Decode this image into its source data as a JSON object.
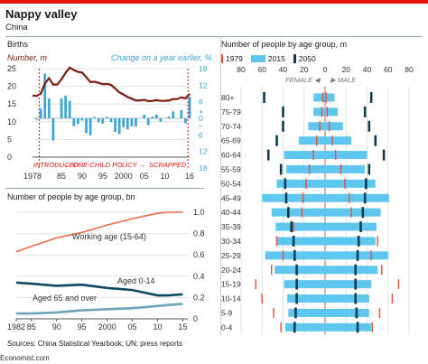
{
  "header": {
    "title": "Nappy valley",
    "subtitle": "China"
  },
  "footer": {
    "source": "Sources: China Statistical Yearbook; UN; press reports",
    "brand": "Economist.com"
  },
  "colors": {
    "births_line": "#7b1a0e",
    "births_change": "#3aa7d8",
    "working_age": "#ec6e4a",
    "aged_0_14": "#0c4a63",
    "aged_65": "#6aa6b8",
    "pyr_1979": "#e3573a",
    "pyr_2015": "#5ec7ef",
    "pyr_2050": "#0c3b52",
    "accent_red": "#e3120b"
  },
  "chart_data": [
    {
      "type": "line",
      "id": "births",
      "title": "Births",
      "left_axis_label": "Number, m",
      "right_axis_label": "Change on a year earlier, %",
      "left_ticks": [
        "25",
        "20",
        "15",
        "10",
        "5",
        "0"
      ],
      "right_ticks": [
        "18",
        "12",
        "6",
        "+",
        "0",
        "–",
        "6",
        "12",
        "18"
      ],
      "x_tick_labels": [
        "1978",
        "85",
        "90",
        "95",
        "2000",
        "05",
        "10",
        "16"
      ],
      "annotations": {
        "introduced": "INTRODUCED",
        "policy": "ONE-CHILD POLICY",
        "scrapped": "SCRAPPED"
      },
      "ylim_left": [
        0,
        25
      ],
      "ylim_right": [
        -18,
        18
      ],
      "x": [
        1978,
        1979,
        1980,
        1981,
        1982,
        1983,
        1984,
        1985,
        1986,
        1987,
        1988,
        1989,
        1990,
        1991,
        1992,
        1993,
        1994,
        1995,
        1996,
        1997,
        1998,
        1999,
        2000,
        2001,
        2002,
        2003,
        2004,
        2005,
        2006,
        2007,
        2008,
        2009,
        2010,
        2011,
        2012,
        2013,
        2014,
        2015,
        2016
      ],
      "series": [
        {
          "name": "Number, m",
          "values": [
            17.4,
            17.3,
            17.9,
            20.8,
            22.3,
            20.5,
            20.5,
            22.0,
            23.8,
            25.3,
            24.6,
            24.1,
            23.9,
            22.6,
            21.2,
            21.3,
            21.0,
            20.6,
            20.7,
            20.4,
            19.4,
            18.3,
            17.7,
            17.0,
            16.5,
            16.0,
            16.0,
            16.2,
            15.8,
            15.9,
            16.1,
            15.9,
            15.9,
            16.0,
            16.4,
            16.4,
            16.9,
            16.6,
            17.9
          ]
        },
        {
          "name": "Change on a year earlier, %",
          "values": [
            0,
            -0.5,
            3.5,
            16.2,
            7.2,
            -8.1,
            0,
            7.3,
            8.2,
            6.3,
            -2.8,
            -2.0,
            -0.8,
            -5.4,
            -6.2,
            0.5,
            -1.4,
            -1.9,
            0.5,
            -1.4,
            -4.9,
            -5.7,
            -3.3,
            -4.0,
            -2.9,
            -3.0,
            0,
            1.3,
            -2.5,
            0.6,
            1.3,
            -1.2,
            0,
            0.6,
            2.5,
            0,
            3.0,
            -1.8,
            7.8
          ]
        }
      ]
    },
    {
      "type": "line",
      "id": "age_groups",
      "title": "Number of people by age group, bn",
      "x_tick_labels": [
        "1982",
        "85",
        "90",
        "95",
        "2000",
        "05",
        "10",
        "15"
      ],
      "y_ticks": [
        "1.0",
        "0.8",
        "0.6",
        "0.4",
        "0.2",
        "0"
      ],
      "ylim": [
        0,
        1.0
      ],
      "x": [
        1982,
        1985,
        1990,
        1995,
        2000,
        2005,
        2010,
        2012,
        2015
      ],
      "series": [
        {
          "name": "Working age (15-64)",
          "values": [
            0.63,
            0.68,
            0.76,
            0.81,
            0.88,
            0.94,
            0.99,
            1.0,
            1.0
          ]
        },
        {
          "name": "Aged 0-14",
          "values": [
            0.34,
            0.33,
            0.31,
            0.32,
            0.29,
            0.27,
            0.22,
            0.22,
            0.23
          ]
        },
        {
          "name": "Aged 65 and over",
          "values": [
            0.05,
            0.05,
            0.06,
            0.08,
            0.09,
            0.1,
            0.12,
            0.13,
            0.14
          ]
        }
      ]
    },
    {
      "type": "bar",
      "id": "pyramid",
      "title": "Number of people by age group, m",
      "legend": [
        "1979",
        "2015",
        "2050"
      ],
      "female_label": "FEMALE",
      "male_label": "MALE",
      "x_tick_labels": [
        "80",
        "60",
        "40",
        "20",
        "0",
        "20",
        "40",
        "60",
        "80"
      ],
      "xlim": [
        -80,
        80
      ],
      "categories": [
        "80+",
        "75-79",
        "70-74",
        "65-69",
        "60-64",
        "55-59",
        "50-54",
        "45-49",
        "40-44",
        "35-39",
        "30-34",
        "25-29",
        "20-24",
        "15-19",
        "10-14",
        "5-9",
        "0-4"
      ],
      "series": [
        {
          "name": "2015 female",
          "values": [
            11,
            11,
            16,
            25,
            39,
            37,
            46,
            60,
            51,
            47,
            46,
            57,
            48,
            39,
            36,
            35,
            38
          ]
        },
        {
          "name": "2015 male",
          "values": [
            9,
            12,
            17,
            25,
            40,
            38,
            48,
            61,
            53,
            49,
            48,
            60,
            50,
            44,
            42,
            42,
            44
          ]
        },
        {
          "name": "1979 female",
          "values": [
            2,
            3,
            5,
            8,
            11,
            15,
            18,
            21,
            22,
            30,
            46,
            40,
            51,
            66,
            60,
            49,
            42
          ]
        },
        {
          "name": "1979 male",
          "values": [
            1,
            2,
            4,
            7,
            10,
            15,
            19,
            23,
            25,
            34,
            50,
            44,
            54,
            70,
            64,
            52,
            45
          ]
        },
        {
          "name": "2050 female",
          "values": [
            58,
            40,
            40,
            46,
            54,
            42,
            38,
            37,
            35,
            32,
            30,
            29,
            27,
            27,
            27,
            28,
            29
          ]
        },
        {
          "name": "2050 male",
          "values": [
            44,
            38,
            42,
            48,
            56,
            42,
            39,
            38,
            36,
            34,
            32,
            31,
            29,
            29,
            29,
            30,
            31
          ]
        }
      ]
    }
  ]
}
